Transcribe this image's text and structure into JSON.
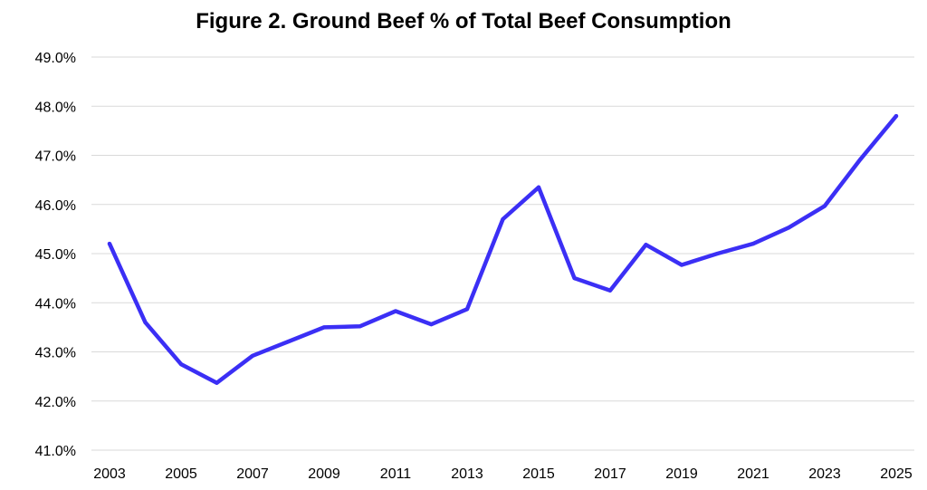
{
  "chart_data": {
    "type": "line",
    "title": "Figure 2. Ground Beef % of Total Beef Consumption",
    "xlabel": "",
    "ylabel": "",
    "x": [
      2003,
      2004,
      2005,
      2006,
      2007,
      2008,
      2009,
      2010,
      2011,
      2012,
      2013,
      2014,
      2015,
      2016,
      2017,
      2018,
      2019,
      2020,
      2021,
      2022,
      2023,
      2024,
      2025
    ],
    "series": [
      {
        "name": "Ground Beef % of Total Beef Consumption",
        "values": [
          45.2,
          43.6,
          42.75,
          42.37,
          42.92,
          43.21,
          43.5,
          43.52,
          43.83,
          43.56,
          43.87,
          45.7,
          46.35,
          44.5,
          44.25,
          45.18,
          44.77,
          45.0,
          45.2,
          45.53,
          45.97,
          46.92,
          47.8
        ],
        "color": "#3b2ff5"
      }
    ],
    "xticks": [
      "2003",
      "2005",
      "2007",
      "2009",
      "2011",
      "2013",
      "2015",
      "2017",
      "2019",
      "2021",
      "2023",
      "2025"
    ],
    "yticks": [
      "41.0%",
      "42.0%",
      "43.0%",
      "44.0%",
      "45.0%",
      "46.0%",
      "47.0%",
      "48.0%",
      "49.0%"
    ],
    "ytick_values": [
      41,
      42,
      43,
      44,
      45,
      46,
      47,
      48,
      49
    ],
    "ylim": [
      41,
      49
    ],
    "xlim": [
      2003,
      2025
    ],
    "grid": true,
    "legend": "none"
  }
}
